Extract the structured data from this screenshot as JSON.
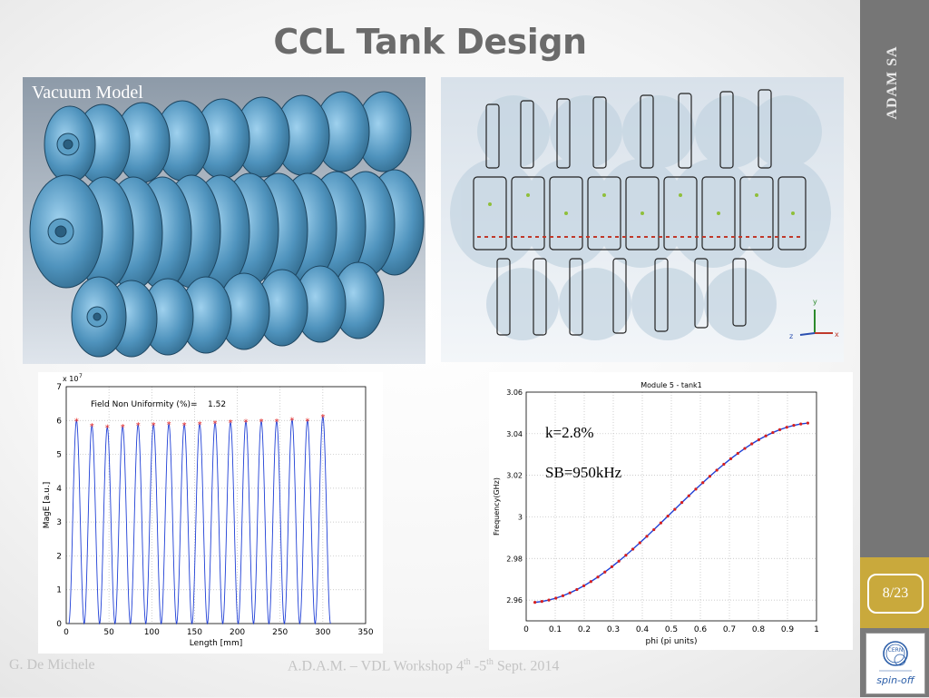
{
  "slide": {
    "title": "CCL Tank Design",
    "side_label": "ADAM SA",
    "page_number": "8/23",
    "footer_left": "G. De Michele",
    "footer_center": {
      "text": "A.D.A.M. – VDL Workshop  4",
      "sup1": "th",
      "mid": " -5",
      "sup2": "th",
      "end": "  Sept. 2014"
    },
    "logo": {
      "name": "CERN",
      "text": "spin-off"
    }
  },
  "vacuum_panel": {
    "label": "Vacuum Model"
  },
  "field_panel": {
    "axis_labels": [
      "y",
      "z",
      "x"
    ]
  },
  "chart_data": [
    {
      "type": "line",
      "title": "",
      "xlabel": "Length [mm]",
      "ylabel": "MagE [a.u.]",
      "multiplier": "x 10",
      "multiplier_exp": "7",
      "xlim": [
        0,
        350
      ],
      "ylim": [
        0,
        7
      ],
      "xticks": [
        0,
        50,
        100,
        150,
        200,
        250,
        300,
        350
      ],
      "yticks": [
        0,
        1,
        2,
        3,
        4,
        5,
        6,
        7
      ],
      "annotation": "Field Non Uniformity (%)=",
      "annotation_value": "1.52",
      "peaks": [
        {
          "x": 12,
          "y": 6.0
        },
        {
          "x": 30,
          "y": 5.85
        },
        {
          "x": 48,
          "y": 5.8
        },
        {
          "x": 66,
          "y": 5.82
        },
        {
          "x": 84,
          "y": 5.88
        },
        {
          "x": 102,
          "y": 5.88
        },
        {
          "x": 120,
          "y": 5.9
        },
        {
          "x": 138,
          "y": 5.88
        },
        {
          "x": 156,
          "y": 5.9
        },
        {
          "x": 174,
          "y": 5.93
        },
        {
          "x": 192,
          "y": 5.95
        },
        {
          "x": 210,
          "y": 5.97
        },
        {
          "x": 228,
          "y": 5.98
        },
        {
          "x": 246,
          "y": 5.98
        },
        {
          "x": 264,
          "y": 6.02
        },
        {
          "x": 282,
          "y": 6.0
        },
        {
          "x": 300,
          "y": 6.12
        }
      ],
      "grid": true
    },
    {
      "type": "line",
      "title": "Module 5 - tank1",
      "xlabel": "phi (pi units)",
      "ylabel": "Frequency(GHz)",
      "xlim": [
        0,
        1
      ],
      "ylim": [
        2.95,
        3.06
      ],
      "xticks": [
        0,
        0.1,
        0.2,
        0.3,
        0.4,
        0.5,
        0.6,
        0.7,
        0.8,
        0.9,
        1
      ],
      "yticks": [
        2.96,
        2.98,
        3,
        3.02,
        3.04,
        3.06
      ],
      "annotations": [
        "k=2.8%",
        "SB=950kHz"
      ],
      "f_center": 3.002,
      "f_amplitude": 0.0433,
      "x_start": 0.03,
      "x_end": 0.97,
      "points": 40,
      "grid": true
    }
  ]
}
